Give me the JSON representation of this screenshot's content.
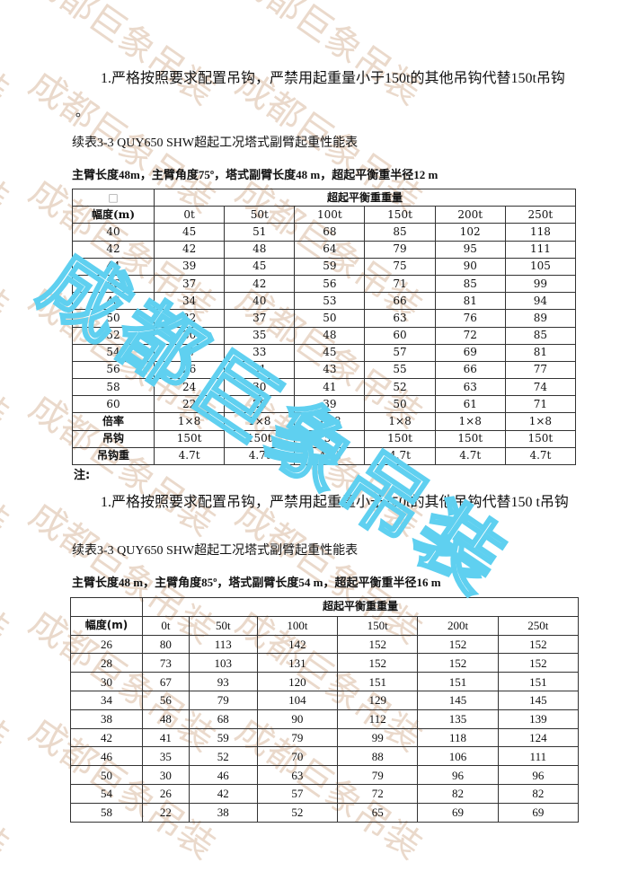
{
  "watermark": {
    "text": "成都巨象吊装",
    "color": "#5fd0f0",
    "bg_color": "#ead9cb"
  },
  "section1": {
    "note": "1.严格按照要求配置吊钩，严禁用起重量小于150t的其他吊钩代替150t吊钩",
    "note_end": "。",
    "caption": "续表3-3 QUY650 SHW超起工况塔式副臂起重性能表",
    "subtitle": "主臂长度48m，主臂角度75º，塔式副臂长度48 m，超起平衡重半径12 m",
    "table": {
      "corner": "□",
      "group_header": "超起平衡重重量",
      "row_header": "幅度(m)",
      "columns": [
        "0t",
        "50t",
        "100t",
        "150t",
        "200t",
        "250t"
      ],
      "rows": [
        [
          "40",
          "45",
          "51",
          "68",
          "85",
          "102",
          "118"
        ],
        [
          "42",
          "42",
          "48",
          "64",
          "79",
          "95",
          "111"
        ],
        [
          "44",
          "39",
          "45",
          "59",
          "75",
          "90",
          "105"
        ],
        [
          "46",
          "37",
          "42",
          "56",
          "71",
          "85",
          "99"
        ],
        [
          "48",
          "34",
          "40",
          "53",
          "66",
          "81",
          "94"
        ],
        [
          "50",
          "32",
          "37",
          "50",
          "63",
          "76",
          "89"
        ],
        [
          "52",
          "30",
          "35",
          "48",
          "60",
          "72",
          "85"
        ],
        [
          "54",
          "27",
          "33",
          "45",
          "57",
          "69",
          "81"
        ],
        [
          "56",
          "26",
          "31",
          "43",
          "55",
          "66",
          "77"
        ],
        [
          "58",
          "24",
          "30",
          "41",
          "52",
          "63",
          "74"
        ],
        [
          "60",
          "22",
          "28",
          "39",
          "50",
          "61",
          "71"
        ]
      ],
      "footer_rows": [
        [
          "倍率",
          "1×8",
          "1×8",
          "1×8",
          "1×8",
          "1×8",
          "1×8"
        ],
        [
          "吊钩",
          "150t",
          "150t",
          "150t",
          "150t",
          "150t",
          "150t"
        ],
        [
          "吊钩重",
          "4.7t",
          "4.7t",
          "4.7t",
          "4.7t",
          "4.7t",
          "4.7t"
        ]
      ]
    }
  },
  "section2": {
    "notes_label": "注:",
    "note": "1.严格按照要求配置吊钩，严禁用起重量小于150t的其他吊钩代替150 t吊钩",
    "caption": "续表3-3 QUY650 SHW超起工况塔式副臂起重性能表",
    "subtitle": "主臂长度48 m，主臂角度85º，塔式副臂长度54 m，超起平衡重半径16 m",
    "table": {
      "group_header": "超起平衡重重量",
      "row_header": "幅度(m)",
      "columns": [
        "0t",
        "50t",
        "100t",
        "150t",
        "200t",
        "250t"
      ],
      "rows": [
        [
          "26",
          "80",
          "113",
          "142",
          "152",
          "152",
          "152"
        ],
        [
          "28",
          "73",
          "103",
          "131",
          "152",
          "152",
          "152"
        ],
        [
          "30",
          "67",
          "93",
          "120",
          "151",
          "151",
          "151"
        ],
        [
          "34",
          "56",
          "79",
          "104",
          "129",
          "145",
          "145"
        ],
        [
          "38",
          "48",
          "68",
          "90",
          "112",
          "135",
          "139"
        ],
        [
          "42",
          "41",
          "59",
          "79",
          "99",
          "118",
          "124"
        ],
        [
          "46",
          "35",
          "52",
          "70",
          "88",
          "106",
          "111"
        ],
        [
          "50",
          "30",
          "46",
          "63",
          "79",
          "96",
          "96"
        ],
        [
          "54",
          "26",
          "42",
          "57",
          "72",
          "82",
          "82"
        ],
        [
          "58",
          "22",
          "38",
          "52",
          "65",
          "69",
          "69"
        ]
      ]
    }
  }
}
